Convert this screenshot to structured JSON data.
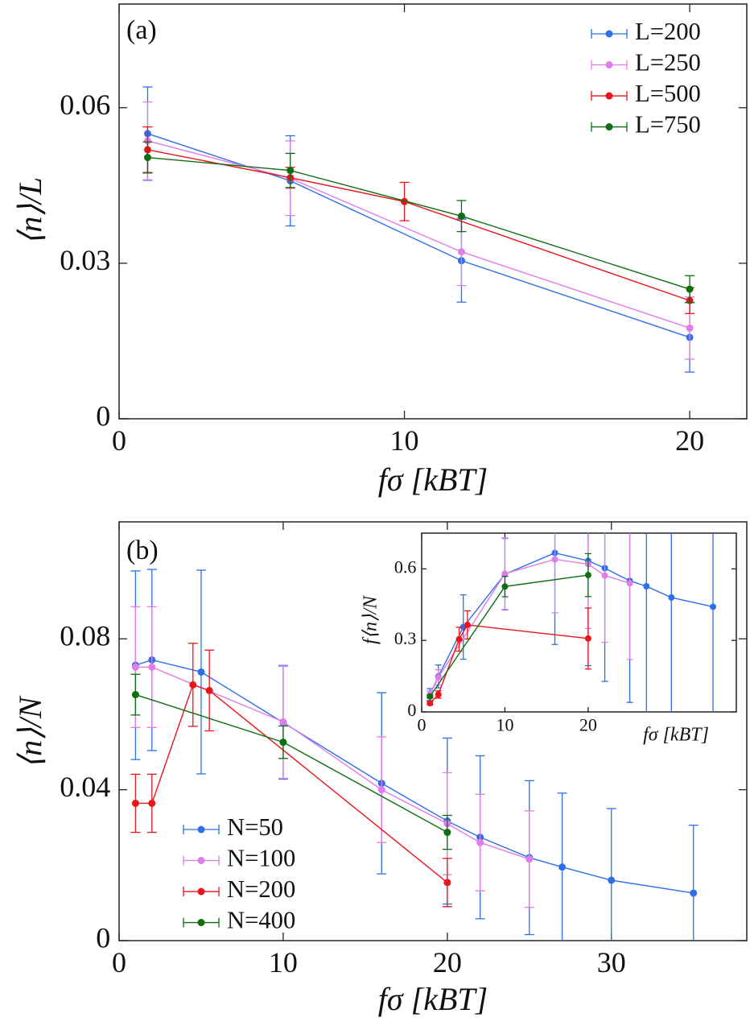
{
  "chart_data": [
    {
      "type": "line",
      "panel_label": "(a)",
      "x_label": "fσ [kBT]",
      "y_label": "⟨n⟩/L",
      "xlim": [
        0,
        22
      ],
      "ylim": [
        0,
        0.08
      ],
      "xticks": [
        0,
        10,
        20
      ],
      "yticks": [
        0,
        0.03,
        0.06
      ],
      "legend": "upper right",
      "series": [
        {
          "name": "L=200",
          "color": "#2e6fe8",
          "x": [
            1,
            6,
            12,
            20
          ],
          "values": [
            0.055,
            0.0459,
            0.0305,
            0.0157
          ],
          "errors": [
            0.009,
            0.0087,
            0.008,
            0.0067
          ]
        },
        {
          "name": "L=250",
          "color": "#e07de8",
          "x": [
            1,
            6,
            12,
            20
          ],
          "values": [
            0.0536,
            0.0464,
            0.0322,
            0.0175
          ],
          "errors": [
            0.0075,
            0.0072,
            0.0065,
            0.006
          ]
        },
        {
          "name": "L=500",
          "color": "#e8151b",
          "x": [
            1,
            6,
            10,
            20
          ],
          "values": [
            0.0519,
            0.0465,
            0.0419,
            0.0228
          ],
          "errors": [
            0.0044,
            0.002,
            0.0037,
            0.0025
          ]
        },
        {
          "name": "L=750",
          "color": "#0f6e12",
          "x": [
            1,
            6,
            12,
            20
          ],
          "values": [
            0.0504,
            0.0479,
            0.0391,
            0.025
          ],
          "errors": [
            0.003,
            0.0033,
            0.003,
            0.0026
          ]
        }
      ]
    },
    {
      "type": "line",
      "panel_label": "(b)",
      "x_label": "fσ [kBT]",
      "y_label": "⟨n⟩/N",
      "xlim": [
        0,
        38.25
      ],
      "ylim": [
        0,
        0.111
      ],
      "xticks": [
        0,
        10,
        20,
        30
      ],
      "yticks": [
        0,
        0.04,
        0.08
      ],
      "legend": "lower left",
      "series": [
        {
          "name": "N=50",
          "color": "#2e6fe8",
          "x": [
            1,
            2,
            5,
            10,
            16,
            20,
            22,
            25,
            27,
            30,
            35
          ],
          "values": [
            0.073,
            0.0744,
            0.0712,
            0.0578,
            0.0417,
            0.0317,
            0.0274,
            0.022,
            0.0195,
            0.016,
            0.0126
          ],
          "errors": [
            0.025,
            0.024,
            0.027,
            0.015,
            0.024,
            0.022,
            0.0216,
            0.0204,
            0.0196,
            0.019,
            0.018
          ]
        },
        {
          "name": "N=100",
          "color": "#e07de8",
          "x": [
            1,
            2,
            10,
            16,
            20,
            22,
            25
          ],
          "values": [
            0.0725,
            0.0725,
            0.058,
            0.04,
            0.031,
            0.026,
            0.0216
          ],
          "errors": [
            0.016,
            0.016,
            0.015,
            0.014,
            0.0135,
            0.0128,
            0.0128
          ]
        },
        {
          "name": "N=200",
          "color": "#e8151b",
          "x": [
            1,
            2,
            4.5,
            5.5,
            20
          ],
          "values": [
            0.0364,
            0.0364,
            0.0678,
            0.0663,
            0.0154
          ],
          "errors": [
            0.0077,
            0.0077,
            0.011,
            0.0107,
            0.0064
          ]
        },
        {
          "name": "N=400",
          "color": "#0f6e12",
          "x": [
            1,
            10,
            20
          ],
          "values": [
            0.0652,
            0.0526,
            0.0287
          ],
          "errors": [
            0.0054,
            0.0043,
            0.0045
          ]
        }
      ]
    },
    {
      "type": "line",
      "x_label": "fσ [kBT]",
      "y_label": "f⟨n⟩/N",
      "xlim": [
        0,
        37.8
      ],
      "ylim": [
        0,
        0.75
      ],
      "xticks": [
        0,
        10,
        20
      ],
      "yticks": [
        0,
        0.3,
        0.6
      ],
      "series": [
        {
          "color": "#2e6fe8",
          "x": [
            1,
            2,
            5,
            10,
            16,
            20,
            22,
            25,
            27,
            30,
            35
          ],
          "values": [
            0.073,
            0.149,
            0.356,
            0.578,
            0.667,
            0.634,
            0.603,
            0.55,
            0.527,
            0.48,
            0.441
          ],
          "errors": [
            0.025,
            0.048,
            0.135,
            0.15,
            0.384,
            0.44,
            0.475,
            0.51,
            0.53,
            0.57,
            0.63
          ]
        },
        {
          "color": "#e07de8",
          "x": [
            1,
            2,
            10,
            16,
            20,
            22,
            25
          ],
          "values": [
            0.0725,
            0.145,
            0.58,
            0.64,
            0.62,
            0.572,
            0.54
          ],
          "errors": [
            0.016,
            0.032,
            0.15,
            0.224,
            0.27,
            0.28,
            0.32
          ]
        },
        {
          "color": "#e8151b",
          "x": [
            1,
            2,
            4.5,
            5.5,
            20
          ],
          "values": [
            0.0364,
            0.073,
            0.305,
            0.365,
            0.308
          ],
          "errors": [
            0.0077,
            0.0154,
            0.05,
            0.059,
            0.128
          ]
        },
        {
          "color": "#0f6e12",
          "x": [
            1,
            10,
            20
          ],
          "values": [
            0.065,
            0.526,
            0.574
          ],
          "errors": [
            0.0054,
            0.043,
            0.09
          ]
        }
      ]
    }
  ]
}
